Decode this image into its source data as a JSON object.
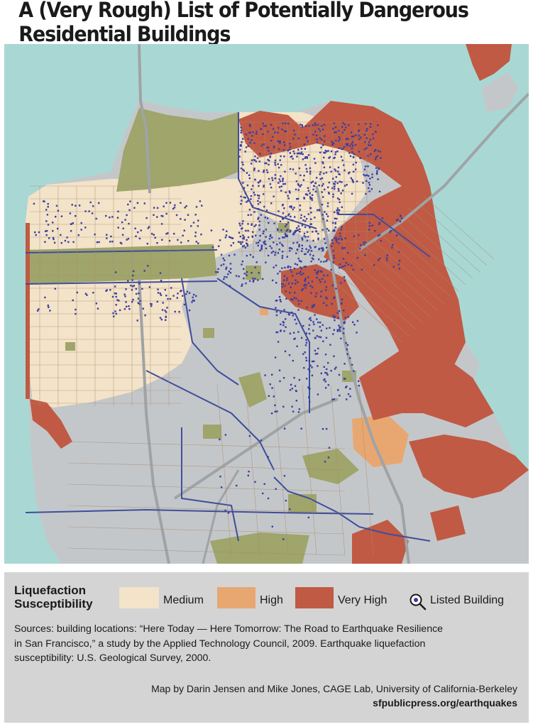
{
  "title": "A (Very Rough) List of Potentially Dangerous Residential Buildings",
  "colors": {
    "water": "#a9d8d4",
    "land": "#c4c7c9",
    "park": "#9fa56b",
    "medium": "#f3e3c8",
    "high": "#e8a770",
    "very_high": "#c05a44",
    "building_dot": "#3b3ea1",
    "roads": "#4a5aa6"
  },
  "legend": {
    "heading_line1": "Liquefaction",
    "heading_line2": "Susceptibility",
    "medium_label": "Medium",
    "high_label": "High",
    "very_high_label": "Very High",
    "listed_label": "Listed Building",
    "listed_icon": "magnifier-icon"
  },
  "sources": {
    "line1": "Sources:  building locations: “Here Today — Here Tomorrow: The Road to Earthquake Resilience",
    "line2": "in San Francisco,” a study by the Applied Technology Council, 2009. Earthquake liquefaction",
    "line3": "susceptibility: U.S. Geological Survey, 2000."
  },
  "credit": "Map by Darin Jensen and Mike Jones, CAGE Lab, University of California-Berkeley",
  "url": "sfpublicpress.org/earthquakes"
}
